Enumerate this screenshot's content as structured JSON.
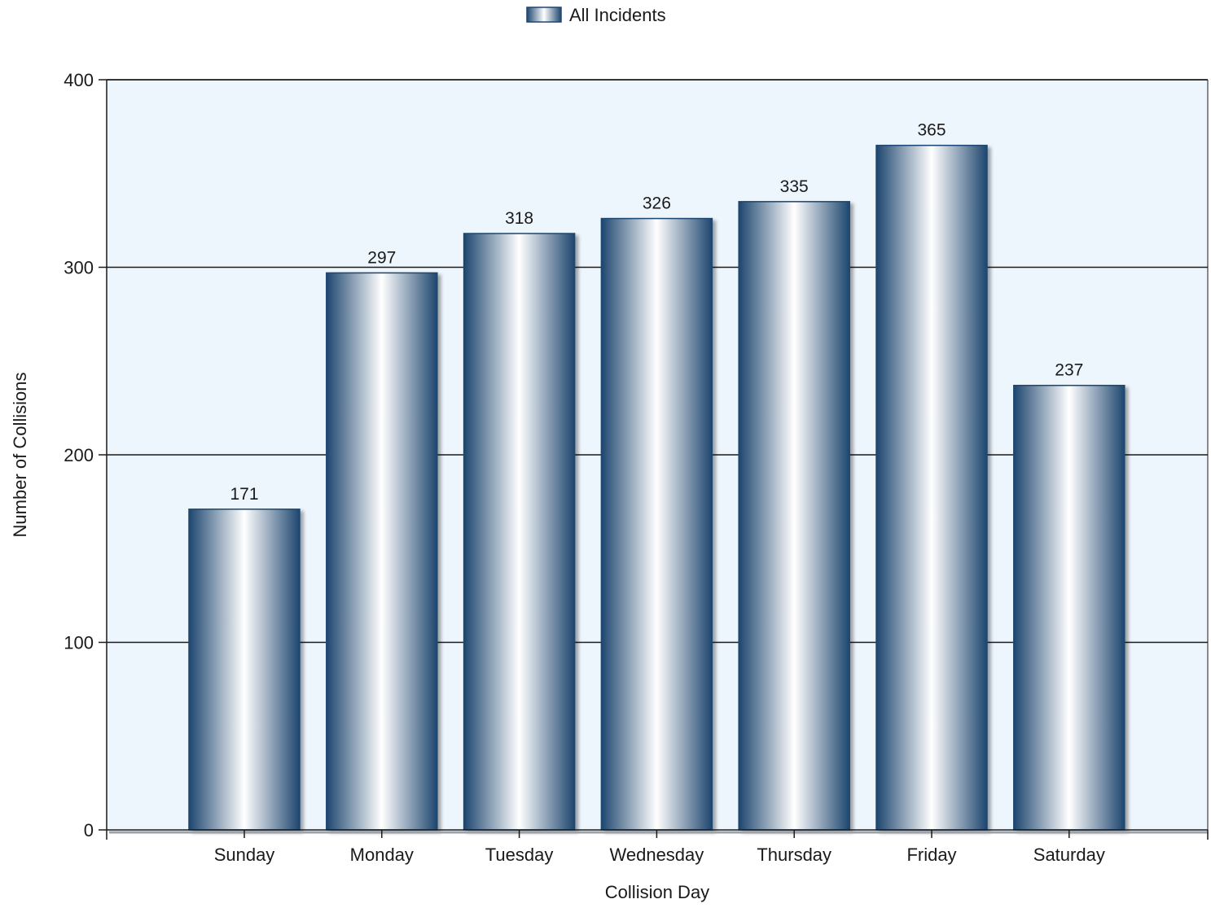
{
  "chart_data": {
    "type": "bar",
    "categories": [
      "Sunday",
      "Monday",
      "Tuesday",
      "Wednesday",
      "Thursday",
      "Friday",
      "Saturday"
    ],
    "series": [
      {
        "name": "All Incidents",
        "values": [
          171,
          297,
          318,
          326,
          335,
          365,
          237
        ]
      }
    ],
    "xlabel": "Collision Day",
    "ylabel": "Number of Collisions",
    "ylim": [
      0,
      400
    ],
    "yticks": [
      0,
      100,
      200,
      300,
      400
    ],
    "grid": true,
    "legend_position": "top-center",
    "colors": {
      "bar_edge": "#1e466f",
      "bar_highlight": "#ffffff",
      "plot_background": "#eef6fd",
      "grid": "#1a1a1a"
    }
  }
}
